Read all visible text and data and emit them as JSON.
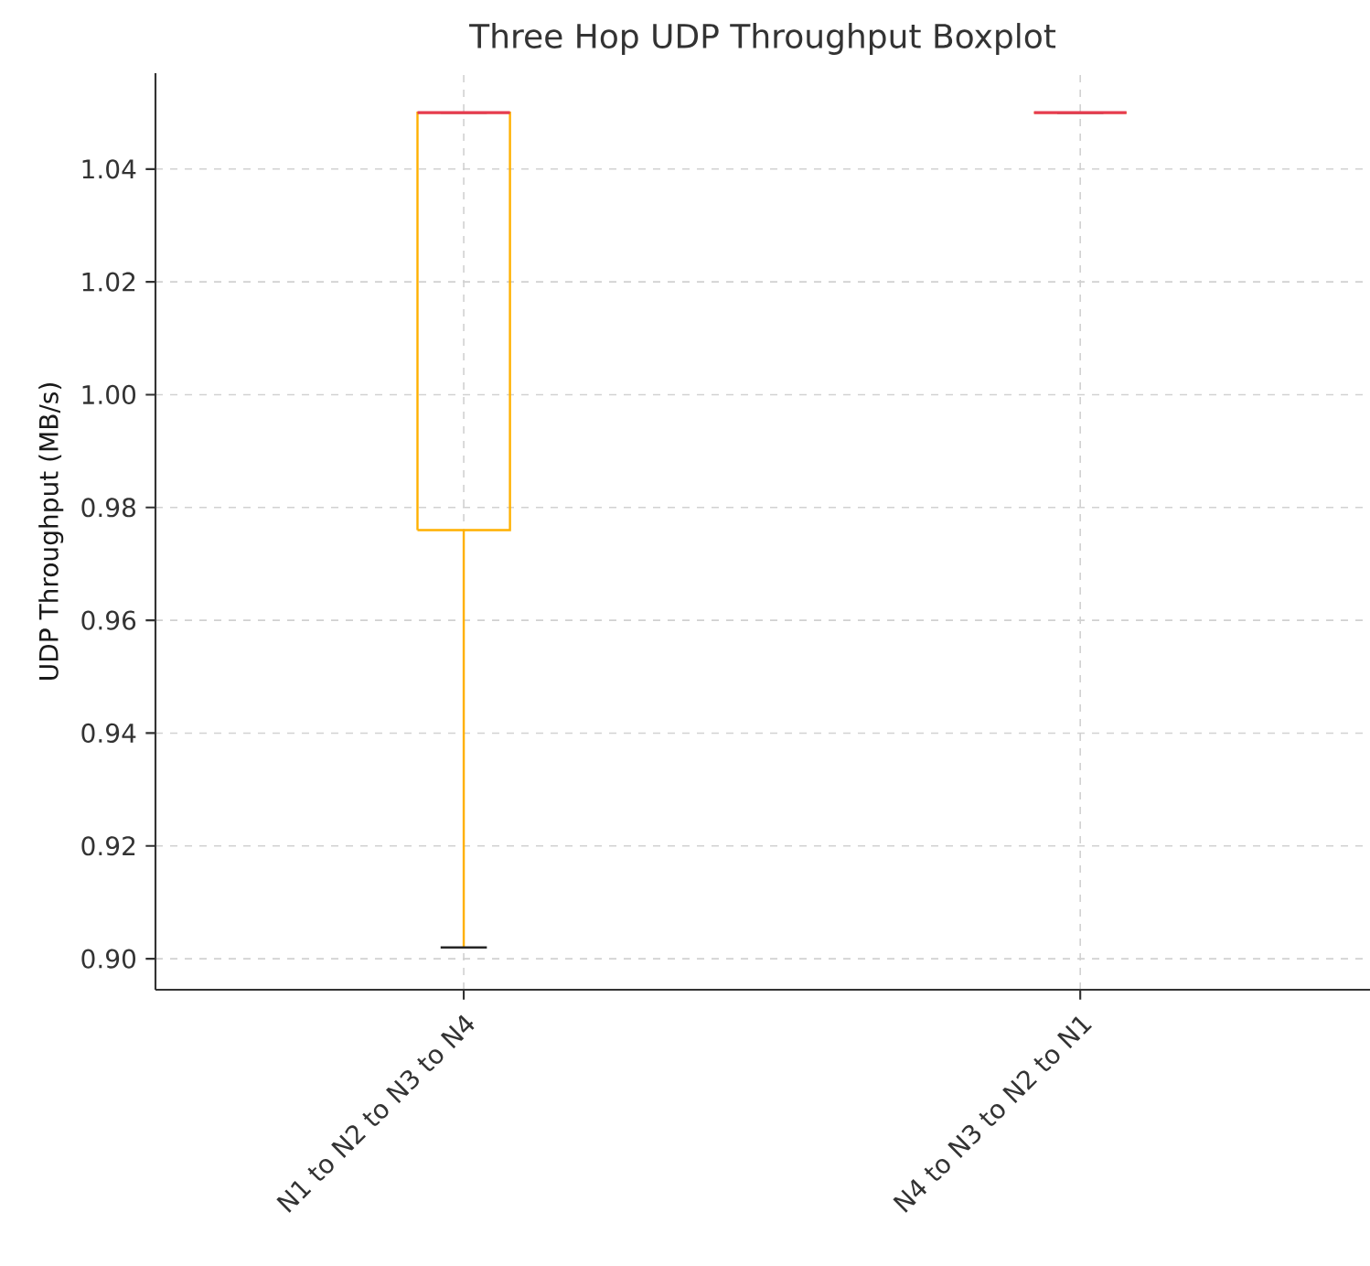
{
  "chart_data": {
    "type": "box",
    "title": "Three Hop UDP Throughput Boxplot",
    "ylabel": "UDP Throughput (MB/s)",
    "categories": [
      "N1 to N2 to N3 to N4",
      "N4 to N3 to N2 to N1"
    ],
    "series": [
      {
        "color": "#ffb000",
        "boxes": [
          {
            "low": 0.902,
            "q1": 0.976,
            "median": 1.05,
            "q3": 1.05,
            "high": 1.05
          },
          {
            "low": 1.05,
            "q1": 1.05,
            "median": 1.05,
            "q3": 1.05,
            "high": 1.05
          }
        ]
      }
    ],
    "ylim": [
      0.8945,
      1.057
    ],
    "yticks": [
      {
        "value": 0.9,
        "label": "0.90"
      },
      {
        "value": 0.92,
        "label": "0.92"
      },
      {
        "value": 0.94,
        "label": "0.94"
      },
      {
        "value": 0.96,
        "label": "0.96"
      },
      {
        "value": 0.98,
        "label": "0.98"
      },
      {
        "value": 1.0,
        "label": "1.00"
      },
      {
        "value": 1.02,
        "label": "1.02"
      },
      {
        "value": 1.04,
        "label": "1.04"
      }
    ],
    "grid": true
  }
}
